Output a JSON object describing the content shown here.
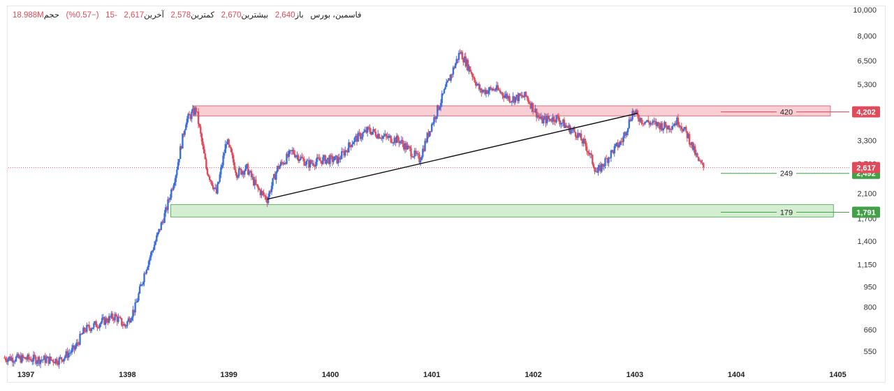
{
  "legend": {
    "symbol": "فاسمین، بورس",
    "items": [
      {
        "label": "باز",
        "value": "2,640"
      },
      {
        "label": "بیشترین",
        "value": "2,670"
      },
      {
        "label": "کمترین",
        "value": "2,578"
      },
      {
        "label": "آخرین",
        "value": "2,617"
      },
      {
        "label": "",
        "value": "-15"
      },
      {
        "label": "",
        "value": "(−0.57%)"
      },
      {
        "label": "حجم",
        "value": "18.988M"
      }
    ]
  },
  "colors": {
    "up": "#3b6fe0",
    "down": "#e24a59",
    "resistance_zone": "#f7c6cc",
    "support_zone": "#cdebc9",
    "last_price": "#e24a59",
    "target": "#43a047"
  },
  "chart_data": {
    "type": "candlestick",
    "scale": "log",
    "ylim": [
      500,
      10000
    ],
    "yticks": [
      550,
      660,
      800,
      950,
      1150,
      1400,
      1700,
      2100,
      2700,
      3300,
      4200,
      5300,
      6500,
      8000,
      10000
    ],
    "ytick_labels": [
      "550",
      "660",
      "800",
      "950",
      "1,150",
      "1,400",
      "1,700",
      "2,100",
      "2,700",
      "3,300",
      "4,200",
      "5,300",
      "6,500",
      "8,000",
      "10,000"
    ],
    "xticks": [
      "1397",
      "1398",
      "1399",
      "1400",
      "1401",
      "1402",
      "1403",
      "1404",
      "1405"
    ],
    "xtick_pos": [
      1397.0,
      1398.0,
      1399.0,
      1400.0,
      1401.0,
      1402.0,
      1403.0,
      1404.0,
      1405.0
    ],
    "xlim": [
      1396.8,
      1405.1
    ],
    "price_path": [
      [
        1396.75,
        520
      ],
      [
        1397.3,
        510
      ],
      [
        1397.45,
        560
      ],
      [
        1397.55,
        660
      ],
      [
        1397.7,
        700
      ],
      [
        1397.85,
        740
      ],
      [
        1397.95,
        680
      ],
      [
        1398.05,
        800
      ],
      [
        1398.15,
        1100
      ],
      [
        1398.25,
        1400
      ],
      [
        1398.35,
        1800
      ],
      [
        1398.45,
        2500
      ],
      [
        1398.55,
        3900
      ],
      [
        1398.65,
        4300
      ],
      [
        1398.75,
        2600
      ],
      [
        1398.85,
        2100
      ],
      [
        1398.95,
        3300
      ],
      [
        1399.05,
        2500
      ],
      [
        1399.15,
        2600
      ],
      [
        1399.25,
        2200
      ],
      [
        1399.35,
        2000
      ],
      [
        1399.45,
        2600
      ],
      [
        1399.6,
        3000
      ],
      [
        1399.75,
        2700
      ],
      [
        1399.9,
        2800
      ],
      [
        1400.05,
        2800
      ],
      [
        1400.2,
        3300
      ],
      [
        1400.35,
        3600
      ],
      [
        1400.5,
        3400
      ],
      [
        1400.65,
        3300
      ],
      [
        1400.85,
        2800
      ],
      [
        1400.95,
        3600
      ],
      [
        1401.05,
        4500
      ],
      [
        1401.15,
        5600
      ],
      [
        1401.25,
        7000
      ],
      [
        1401.35,
        6000
      ],
      [
        1401.45,
        5000
      ],
      [
        1401.6,
        5100
      ],
      [
        1401.75,
        4700
      ],
      [
        1401.9,
        4800
      ],
      [
        1402.05,
        3900
      ],
      [
        1402.2,
        4000
      ],
      [
        1402.3,
        3700
      ],
      [
        1402.4,
        3500
      ],
      [
        1402.5,
        3100
      ],
      [
        1402.6,
        2500
      ],
      [
        1402.75,
        3000
      ],
      [
        1402.85,
        3300
      ],
      [
        1402.95,
        4200
      ],
      [
        1403.05,
        3900
      ],
      [
        1403.15,
        3800
      ],
      [
        1403.3,
        3700
      ],
      [
        1403.4,
        3900
      ],
      [
        1403.5,
        3400
      ],
      [
        1403.6,
        2750
      ],
      [
        1403.65,
        2617
      ]
    ],
    "zones": [
      {
        "name": "resistance",
        "from_x": 1398.62,
        "to_x": 1404.9,
        "low": 4060,
        "high": 4420
      },
      {
        "name": "support",
        "from_x": 1398.4,
        "to_x": 1404.93,
        "low": 1720,
        "high": 1910
      }
    ],
    "trendline": [
      [
        1399.35,
        2000
      ],
      [
        1403.0,
        4150
      ]
    ],
    "targets": [
      {
        "label": "420",
        "price": 4202,
        "badge": "4,202",
        "color": "#e24a59"
      },
      {
        "label": "249",
        "price": 2492,
        "badge": "2,492",
        "color": "#43a047"
      },
      {
        "label": "179",
        "price": 1791,
        "badge": "1,791",
        "color": "#43a047"
      }
    ],
    "last_price": {
      "price": 2617,
      "badge": "2,617"
    }
  }
}
